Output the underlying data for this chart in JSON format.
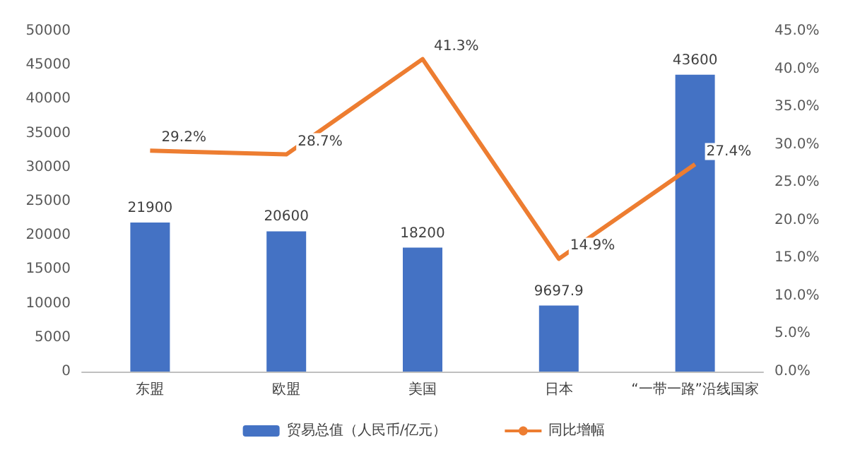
{
  "chart_data": {
    "type": "bar",
    "categories": [
      "东盟",
      "欧盟",
      "美国",
      "日本",
      "“一带一路”沿线国家"
    ],
    "series": [
      {
        "name": "贸易总值（人民币/亿元）",
        "color": "#4472c4",
        "values": [
          21900,
          20600,
          18200,
          9697.9,
          43600
        ],
        "value_labels": [
          "21900",
          "20600",
          "18200",
          "9697.9",
          "43600"
        ]
      },
      {
        "name": "同比增幅",
        "type": "line",
        "axis": "y2",
        "color": "#ed7d31",
        "marker": "none",
        "values": [
          29.2,
          28.7,
          41.3,
          14.9,
          27.4
        ],
        "value_labels": [
          "29.2%",
          "28.7%",
          "41.3%",
          "14.9%",
          "27.4%"
        ]
      }
    ],
    "ylim": [
      0,
      50000
    ],
    "yticks": [
      0,
      5000,
      10000,
      15000,
      20000,
      25000,
      30000,
      35000,
      40000,
      45000,
      50000
    ],
    "y2lim": [
      0,
      45
    ],
    "y2ticks": [
      {
        "value": 0,
        "label": "0.0%"
      },
      {
        "value": 5,
        "label": "5.0%"
      },
      {
        "value": 10,
        "label": "10.0%"
      },
      {
        "value": 15,
        "label": "15.0%"
      },
      {
        "value": 20,
        "label": "20.0%"
      },
      {
        "value": 25,
        "label": "25.0%"
      },
      {
        "value": 30,
        "label": "30.0%"
      },
      {
        "value": 35,
        "label": "35.0%"
      },
      {
        "value": 40,
        "label": "40.0%"
      },
      {
        "value": 45,
        "label": "45.0%"
      }
    ],
    "grid": false,
    "legend": "bottom"
  }
}
